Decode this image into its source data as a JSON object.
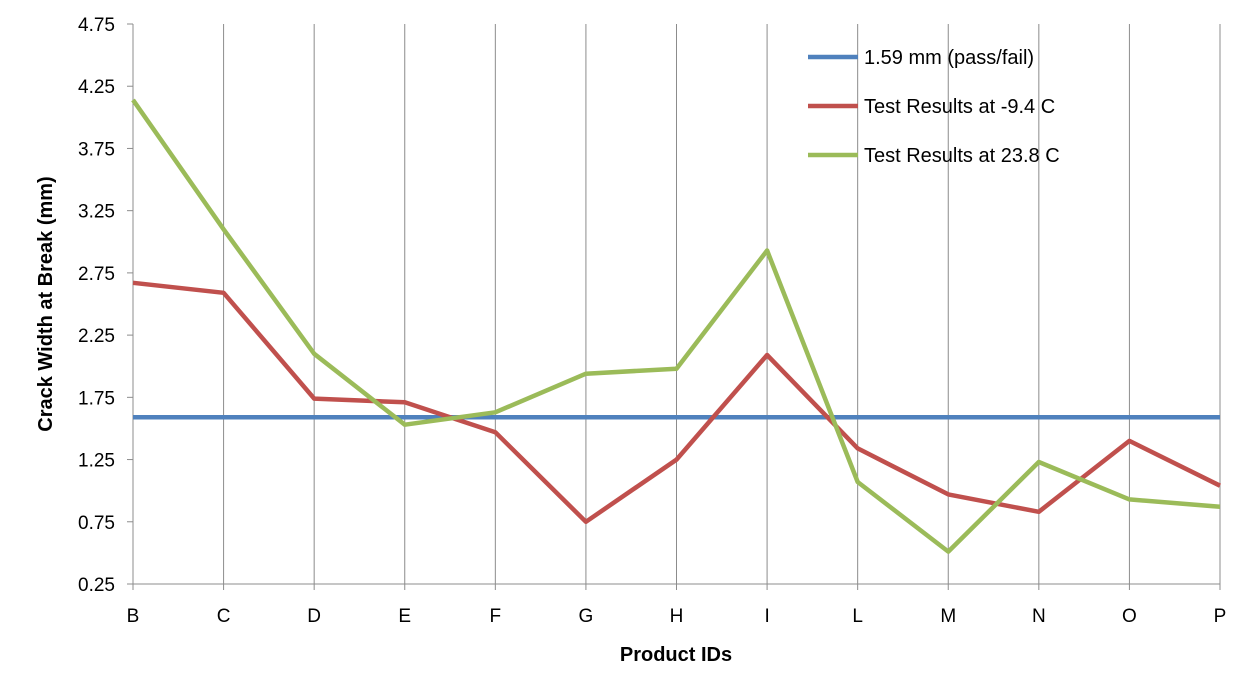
{
  "chart_data": {
    "type": "line",
    "title": "",
    "xlabel": "Product IDs",
    "ylabel": "Crack Width at Break (mm)",
    "categories": [
      "B",
      "C",
      "D",
      "E",
      "F",
      "G",
      "H",
      "I",
      "L",
      "M",
      "N",
      "O",
      "P"
    ],
    "ylim": [
      0.25,
      4.75
    ],
    "yticks": [
      0.25,
      0.75,
      1.25,
      1.75,
      2.25,
      2.75,
      3.25,
      3.75,
      4.25,
      4.75
    ],
    "ytick_labels": [
      "0.25",
      "0.75",
      "1.25",
      "1.75",
      "2.25",
      "2.75",
      "3.25",
      "3.75",
      "4.25",
      "4.75"
    ],
    "grid": "vertical",
    "legend_position": "top-right",
    "series": [
      {
        "name": "1.59 mm (pass/fail)",
        "color": "#4F81BD",
        "values": [
          1.59,
          1.59,
          1.59,
          1.59,
          1.59,
          1.59,
          1.59,
          1.59,
          1.59,
          1.59,
          1.59,
          1.59,
          1.59
        ]
      },
      {
        "name": "Test Results at -9.4 C",
        "color": "#C0504D",
        "values": [
          2.67,
          2.59,
          1.74,
          1.71,
          1.47,
          0.75,
          1.25,
          2.09,
          1.34,
          0.97,
          0.83,
          1.4,
          1.04
        ]
      },
      {
        "name": "Test Results at 23.8 C",
        "color": "#9BBB59",
        "values": [
          4.14,
          3.1,
          2.1,
          1.53,
          1.63,
          1.94,
          1.98,
          2.93,
          1.07,
          0.51,
          1.23,
          0.93,
          0.87
        ]
      }
    ]
  }
}
